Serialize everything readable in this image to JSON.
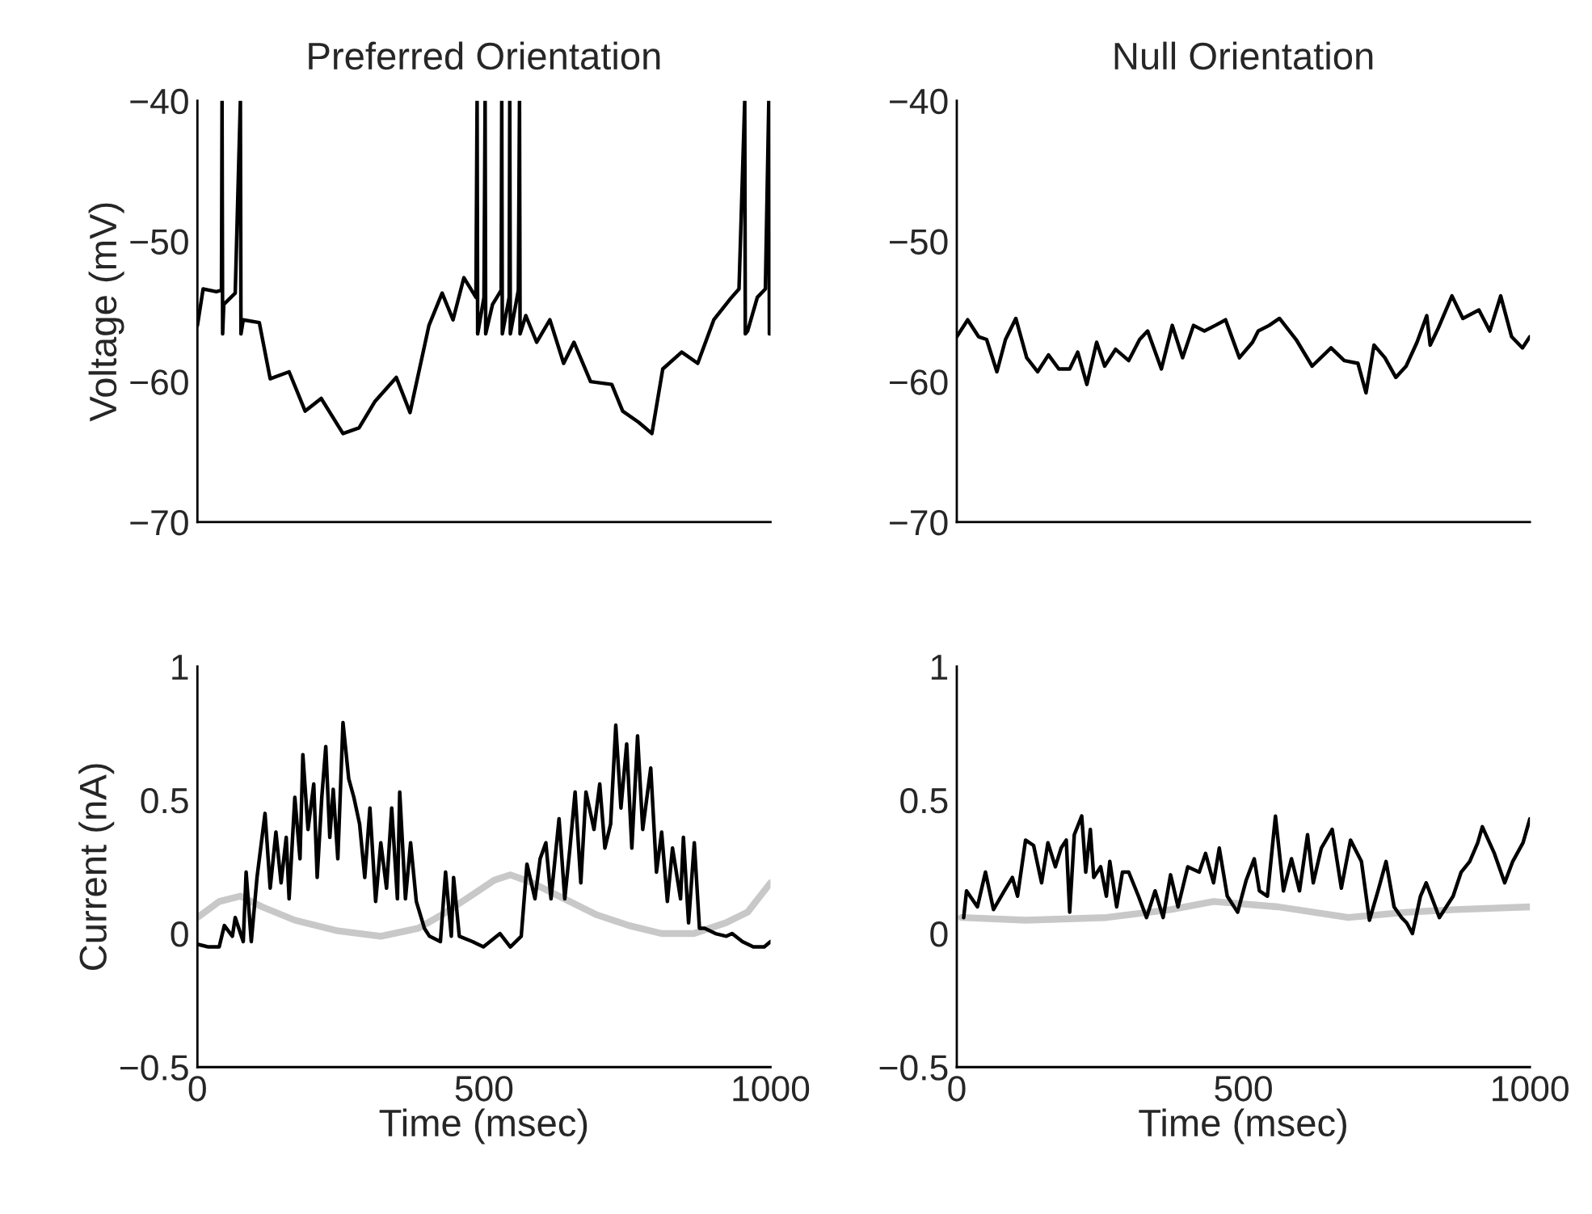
{
  "chart_data": [
    {
      "type": "line",
      "title": "Preferred Orientation",
      "ylabel": "Voltage (mV)",
      "xlim": [
        0,
        1000
      ],
      "ylim": [
        -70,
        -40
      ],
      "yticks": [
        {
          "value": -70,
          "label": "−70"
        },
        {
          "value": -60,
          "label": "−60"
        },
        {
          "value": -50,
          "label": "−50"
        },
        {
          "value": -40,
          "label": "−40"
        }
      ],
      "tick_labels": "y",
      "grid": false,
      "legend": false,
      "series": [
        {
          "color": "#000000",
          "x": [
            0,
            10,
            33,
            42,
            43,
            44,
            46,
            66,
            75,
            76,
            80,
            108,
            127,
            160,
            188,
            216,
            254,
            282,
            310,
            347,
            371,
            404,
            427,
            446,
            465,
            486,
            488,
            489,
            500,
            502,
            503,
            515,
            530,
            531,
            532,
            544,
            545,
            546,
            560,
            562,
            563,
            573,
            592,
            615,
            639,
            657,
            686,
            723,
            742,
            770,
            793,
            812,
            845,
            873,
            901,
            930,
            945,
            955,
            956,
            960,
            977,
            991,
            997,
            998,
            1000
          ],
          "values": [
            -56.0,
            -53.4,
            -53.6,
            -53.5,
            -40,
            -56.6,
            -54.5,
            -53.7,
            -40,
            -56.6,
            -55.6,
            -55.8,
            -59.8,
            -59.3,
            -62.1,
            -61.2,
            -63.7,
            -63.3,
            -61.4,
            -59.7,
            -62.2,
            -56.0,
            -53.7,
            -55.6,
            -52.6,
            -54.0,
            -40,
            -56.6,
            -54.0,
            -40,
            -56.6,
            -54.5,
            -53.5,
            -40,
            -56.6,
            -54.0,
            -40,
            -56.6,
            -53.5,
            -40,
            -56.6,
            -55.3,
            -57.2,
            -55.6,
            -58.7,
            -57.2,
            -60.0,
            -60.2,
            -62.1,
            -62.9,
            -63.7,
            -59.1,
            -57.9,
            -58.7,
            -55.6,
            -54.1,
            -53.4,
            -40,
            -56.6,
            -56.4,
            -54.0,
            -53.4,
            -40,
            -56.6,
            -56.6
          ]
        }
      ]
    },
    {
      "type": "line",
      "title": "Null Orientation",
      "xlim": [
        0,
        1000
      ],
      "ylim": [
        -70,
        -40
      ],
      "yticks": [
        {
          "value": -70,
          "label": "−70"
        },
        {
          "value": -60,
          "label": "−60"
        },
        {
          "value": -50,
          "label": "−50"
        },
        {
          "value": -40,
          "label": "−40"
        }
      ],
      "tick_labels": "y",
      "grid": false,
      "legend": false,
      "series": [
        {
          "color": "#000000",
          "x": [
            0,
            19,
            38,
            52,
            70,
            85,
            103,
            122,
            141,
            160,
            178,
            197,
            211,
            227,
            244,
            258,
            277,
            300,
            319,
            333,
            357,
            376,
            394,
            413,
            432,
            451,
            469,
            493,
            516,
            526,
            545,
            563,
            592,
            620,
            653,
            676,
            700,
            714,
            728,
            747,
            766,
            784,
            803,
            820,
            826,
            840,
            864,
            883,
            911,
            930,
            949,
            968,
            987,
            1000
          ],
          "values": [
            -56.8,
            -55.6,
            -56.8,
            -57.0,
            -59.3,
            -57.0,
            -55.5,
            -58.3,
            -59.3,
            -58.1,
            -59.1,
            -59.1,
            -57.9,
            -60.2,
            -57.2,
            -58.9,
            -57.7,
            -58.5,
            -57.0,
            -56.4,
            -59.1,
            -56.0,
            -58.3,
            -56.0,
            -56.4,
            -56.0,
            -55.6,
            -58.3,
            -57.2,
            -56.4,
            -56.0,
            -55.5,
            -57.0,
            -58.9,
            -57.6,
            -58.5,
            -58.7,
            -60.8,
            -57.4,
            -58.3,
            -59.7,
            -58.9,
            -57.2,
            -55.3,
            -57.4,
            -56.2,
            -53.9,
            -55.5,
            -54.9,
            -56.4,
            -53.9,
            -56.8,
            -57.6,
            -56.8
          ]
        }
      ]
    },
    {
      "type": "line",
      "xlabel": "Time (msec)",
      "ylabel": "Current (nA)",
      "xlim": [
        0,
        1000
      ],
      "xticks": [
        0,
        500,
        1000
      ],
      "ylim": [
        -0.5,
        1
      ],
      "yticks": [
        {
          "value": -0.5,
          "label": "−0.5"
        },
        0,
        0.5,
        1
      ],
      "grid": false,
      "legend": false,
      "series": [
        {
          "color": "#000000",
          "x": [
            0,
            19,
            38,
            47,
            61,
            66,
            80,
            85,
            94,
            104,
            118,
            127,
            137,
            146,
            155,
            160,
            170,
            179,
            184,
            193,
            203,
            209,
            217,
            224,
            231,
            237,
            245,
            254,
            264,
            273,
            283,
            292,
            301,
            311,
            320,
            330,
            339,
            349,
            353,
            363,
            372,
            382,
            396,
            405,
            424,
            433,
            443,
            447,
            457,
            480,
            499,
            528,
            546,
            565,
            575,
            589,
            598,
            608,
            617,
            631,
            641,
            650,
            659,
            669,
            678,
            692,
            702,
            711,
            721,
            730,
            739,
            749,
            758,
            768,
            777,
            791,
            801,
            810,
            820,
            829,
            843,
            848,
            857,
            867,
            876,
            885,
            904,
            923,
            933,
            951,
            970,
            989,
            1000
          ],
          "values": [
            -0.04,
            -0.05,
            -0.05,
            0.03,
            -0.01,
            0.06,
            -0.03,
            0.23,
            -0.03,
            0.21,
            0.45,
            0.17,
            0.38,
            0.19,
            0.36,
            0.13,
            0.51,
            0.28,
            0.67,
            0.39,
            0.56,
            0.21,
            0.51,
            0.7,
            0.36,
            0.54,
            0.28,
            0.79,
            0.58,
            0.51,
            0.41,
            0.21,
            0.47,
            0.12,
            0.34,
            0.17,
            0.47,
            0.13,
            0.53,
            0.13,
            0.34,
            0.12,
            0.02,
            -0.01,
            -0.03,
            0.23,
            -0.01,
            0.21,
            -0.01,
            -0.03,
            -0.05,
            0.0,
            -0.05,
            -0.01,
            0.26,
            0.13,
            0.28,
            0.34,
            0.13,
            0.43,
            0.13,
            0.32,
            0.53,
            0.19,
            0.53,
            0.39,
            0.56,
            0.32,
            0.41,
            0.78,
            0.47,
            0.71,
            0.32,
            0.74,
            0.39,
            0.62,
            0.23,
            0.38,
            0.12,
            0.32,
            0.13,
            0.36,
            0.04,
            0.34,
            0.02,
            0.02,
            0.0,
            -0.01,
            0.0,
            -0.03,
            -0.05,
            -0.05,
            -0.03
          ]
        },
        {
          "color": "#c8c8c8",
          "x": [
            0,
            38,
            75,
            113,
            170,
            245,
            320,
            386,
            434,
            490,
            518,
            546,
            584,
            640,
            697,
            753,
            810,
            866,
            922,
            960,
            1000
          ],
          "values": [
            0.06,
            0.12,
            0.14,
            0.1,
            0.05,
            0.01,
            -0.01,
            0.02,
            0.08,
            0.16,
            0.2,
            0.22,
            0.19,
            0.13,
            0.07,
            0.03,
            0.0,
            0.0,
            0.04,
            0.08,
            0.19
          ]
        }
      ]
    },
    {
      "type": "line",
      "xlabel": "Time (msec)",
      "xlim": [
        0,
        1000
      ],
      "xticks": [
        0,
        500,
        1000
      ],
      "ylim": [
        -0.5,
        1
      ],
      "yticks": [
        {
          "value": -0.5,
          "label": "−0.5"
        },
        0,
        0.5,
        1
      ],
      "grid": false,
      "legend": false,
      "series": [
        {
          "color": "#000000",
          "x": [
            12,
            17,
            36,
            50,
            64,
            83,
            97,
            106,
            120,
            134,
            148,
            159,
            172,
            182,
            191,
            197,
            205,
            218,
            225,
            233,
            239,
            251,
            261,
            267,
            279,
            289,
            300,
            317,
            331,
            346,
            360,
            373,
            386,
            403,
            423,
            434,
            448,
            458,
            472,
            490,
            505,
            519,
            528,
            542,
            556,
            570,
            584,
            598,
            612,
            622,
            636,
            655,
            671,
            687,
            706,
            720,
            735,
            749,
            763,
            776,
            785,
            795,
            809,
            819,
            842,
            866,
            880,
            895,
            909,
            917,
            938,
            956,
            970,
            988,
            1000
          ],
          "values": [
            0.06,
            0.16,
            0.1,
            0.23,
            0.09,
            0.16,
            0.21,
            0.14,
            0.35,
            0.33,
            0.19,
            0.34,
            0.25,
            0.32,
            0.35,
            0.08,
            0.37,
            0.44,
            0.23,
            0.39,
            0.21,
            0.25,
            0.14,
            0.27,
            0.1,
            0.23,
            0.23,
            0.14,
            0.06,
            0.16,
            0.06,
            0.22,
            0.1,
            0.25,
            0.23,
            0.3,
            0.19,
            0.32,
            0.14,
            0.08,
            0.2,
            0.28,
            0.16,
            0.14,
            0.44,
            0.16,
            0.28,
            0.16,
            0.37,
            0.19,
            0.32,
            0.39,
            0.17,
            0.35,
            0.27,
            0.05,
            0.16,
            0.27,
            0.1,
            0.06,
            0.04,
            0.0,
            0.14,
            0.19,
            0.06,
            0.14,
            0.23,
            0.27,
            0.34,
            0.4,
            0.3,
            0.19,
            0.27,
            0.34,
            0.43
          ]
        },
        {
          "color": "#c8c8c8",
          "x": [
            8,
            120,
            261,
            373,
            448,
            561,
            683,
            786,
            870,
            1000
          ],
          "values": [
            0.06,
            0.05,
            0.06,
            0.09,
            0.12,
            0.1,
            0.06,
            0.08,
            0.09,
            0.1
          ]
        }
      ]
    }
  ]
}
